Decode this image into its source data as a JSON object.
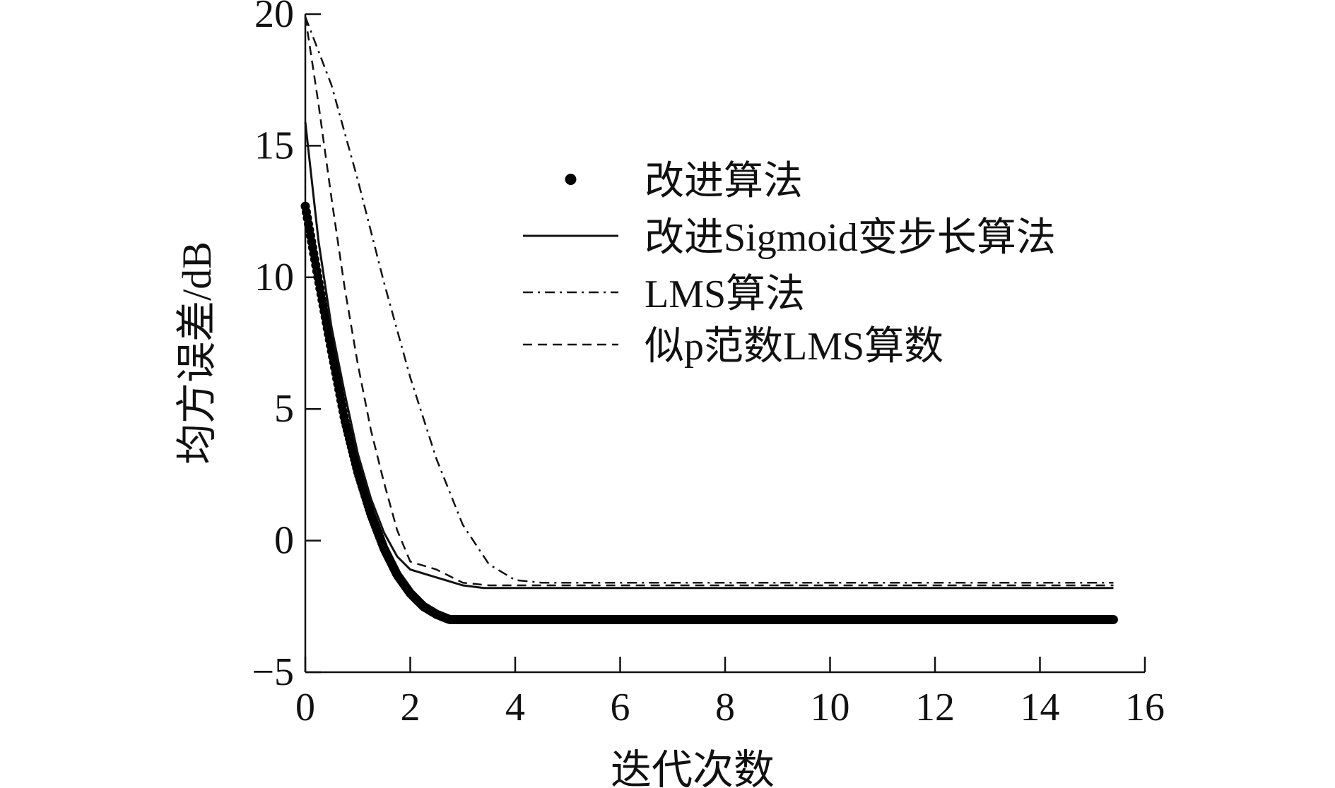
{
  "chart_data": {
    "type": "line",
    "title": "",
    "xlabel": "迭代次数",
    "ylabel": "均方误差/dB",
    "xlim": [
      0,
      16
    ],
    "ylim": [
      -5,
      20
    ],
    "xticks": [
      0,
      2,
      4,
      6,
      8,
      10,
      12,
      14,
      16
    ],
    "yticks": [
      -5,
      0,
      5,
      10,
      15,
      20
    ],
    "ytick_labels": [
      "−5",
      "0",
      "5",
      "10",
      "15",
      "20"
    ],
    "grid": false,
    "legend_position": "upper-right",
    "series": [
      {
        "name": "改进算法",
        "style": "dots",
        "x": [
          0,
          0.25,
          0.5,
          0.75,
          1.0,
          1.25,
          1.5,
          1.75,
          2.0,
          2.25,
          2.5,
          2.75,
          3.0,
          4,
          6,
          8,
          10,
          12,
          14,
          15.4
        ],
        "y": [
          12.7,
          9.9,
          7.2,
          4.6,
          2.6,
          1.0,
          -0.3,
          -1.3,
          -2.0,
          -2.5,
          -2.8,
          -3.0,
          -3.0,
          -3.0,
          -3.0,
          -3.0,
          -3.0,
          -3.0,
          -3.0,
          -3.0
        ]
      },
      {
        "name": "改进Sigmoid变步长算法",
        "style": "solid",
        "x": [
          0,
          0.25,
          0.5,
          0.75,
          1.0,
          1.25,
          1.5,
          1.75,
          2.0,
          2.5,
          3.0,
          3.4,
          4,
          6,
          8,
          10,
          12,
          14,
          15.4
        ],
        "y": [
          15.9,
          11.4,
          8.1,
          5.6,
          3.3,
          1.6,
          0.3,
          -0.6,
          -1.1,
          -1.4,
          -1.7,
          -1.8,
          -1.8,
          -1.8,
          -1.8,
          -1.8,
          -1.8,
          -1.8,
          -1.8
        ]
      },
      {
        "name": "LMS算法",
        "style": "dashdot",
        "x": [
          0,
          0.5,
          1.0,
          1.5,
          2.0,
          2.5,
          3.0,
          3.5,
          4.0,
          4.5,
          6,
          8,
          10,
          12,
          14,
          15.4
        ],
        "y": [
          19.9,
          17.3,
          13.7,
          9.8,
          6.2,
          3.1,
          0.6,
          -0.9,
          -1.5,
          -1.6,
          -1.6,
          -1.6,
          -1.6,
          -1.6,
          -1.6,
          -1.6
        ]
      },
      {
        "name": "似p范数LMS算数",
        "style": "dashed",
        "x": [
          0,
          0.25,
          0.5,
          0.75,
          1.0,
          1.25,
          1.5,
          1.75,
          2.0,
          2.5,
          3.0,
          3.5,
          4.0,
          6,
          8,
          10,
          12,
          14,
          15.4
        ],
        "y": [
          19.9,
          16.6,
          13.0,
          9.6,
          6.7,
          4.2,
          2.2,
          0.4,
          -0.8,
          -1.1,
          -1.6,
          -1.7,
          -1.7,
          -1.7,
          -1.7,
          -1.7,
          -1.7,
          -1.7,
          -1.7
        ]
      }
    ]
  }
}
